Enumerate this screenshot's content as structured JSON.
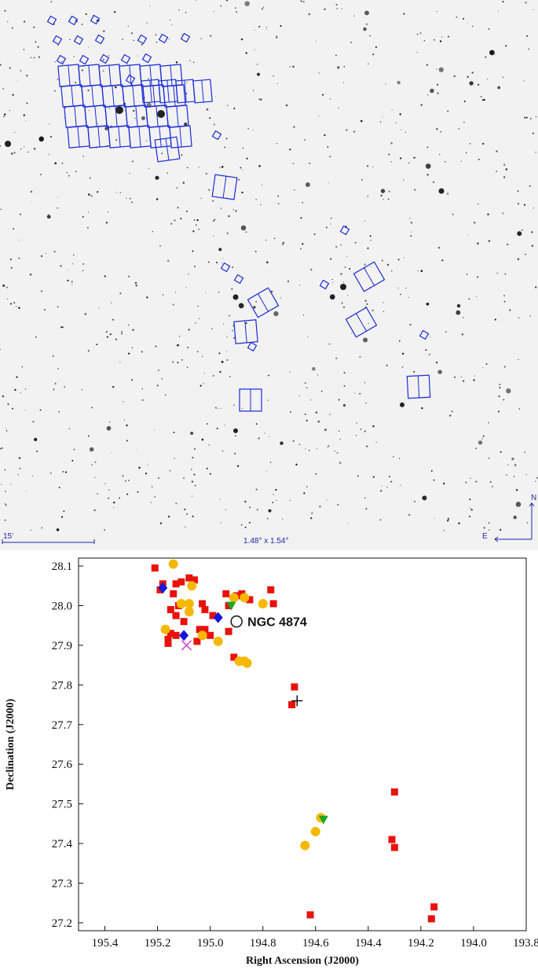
{
  "sky_image": {
    "scale_bar_label": "15'",
    "fov_label": "1.48° x 1.54°",
    "north_label": "N",
    "east_label": "E",
    "frame_color": "#1a2ad8"
  },
  "chart_data": {
    "type": "scatter",
    "title": "",
    "xlabel": "Right Ascension (J2000)",
    "ylabel": "Declination (J2000)",
    "xlim": [
      195.5,
      193.8
    ],
    "ylim": [
      27.18,
      28.12
    ],
    "x_ticks": [
      "195.4",
      "195.2",
      "195.0",
      "194.8",
      "194.6",
      "194.4",
      "194.2",
      "194.0",
      "193.8"
    ],
    "x_tick_values": [
      195.4,
      195.2,
      195.0,
      194.8,
      194.6,
      194.4,
      194.2,
      194.0,
      193.8
    ],
    "y_ticks": [
      "27.2",
      "27.3",
      "27.4",
      "27.5",
      "27.6",
      "27.7",
      "27.8",
      "27.9",
      "28.0",
      "28.1"
    ],
    "y_tick_values": [
      27.2,
      27.3,
      27.4,
      27.5,
      27.6,
      27.7,
      27.8,
      27.9,
      28.0,
      28.1
    ],
    "annotation": {
      "text": "NGC 4874",
      "x": 194.9,
      "y": 27.96
    },
    "series": [
      {
        "marker": "square",
        "color": "#e8120c",
        "points": [
          [
            195.21,
            28.095
          ],
          [
            195.18,
            28.055
          ],
          [
            195.19,
            28.04
          ],
          [
            195.13,
            28.055
          ],
          [
            195.11,
            28.06
          ],
          [
            195.08,
            28.07
          ],
          [
            195.06,
            28.065
          ],
          [
            195.14,
            28.03
          ],
          [
            195.12,
            28.0
          ],
          [
            195.15,
            27.99
          ],
          [
            195.13,
            27.975
          ],
          [
            195.1,
            27.96
          ],
          [
            195.08,
            27.985
          ],
          [
            195.03,
            28.005
          ],
          [
            195.02,
            27.99
          ],
          [
            194.99,
            27.975
          ],
          [
            195.04,
            27.94
          ],
          [
            195.02,
            27.94
          ],
          [
            195.0,
            27.925
          ],
          [
            195.05,
            27.91
          ],
          [
            195.16,
            27.915
          ],
          [
            195.16,
            27.905
          ],
          [
            195.13,
            27.925
          ],
          [
            195.15,
            27.93
          ],
          [
            194.94,
            28.03
          ],
          [
            194.9,
            28.025
          ],
          [
            194.88,
            28.03
          ],
          [
            194.93,
            28.0
          ],
          [
            194.85,
            28.015
          ],
          [
            194.77,
            28.04
          ],
          [
            194.76,
            28.005
          ],
          [
            194.93,
            27.935
          ],
          [
            194.91,
            27.87
          ],
          [
            194.68,
            27.795
          ],
          [
            194.69,
            27.75
          ],
          [
            194.62,
            27.22
          ],
          [
            194.3,
            27.53
          ],
          [
            194.31,
            27.41
          ],
          [
            194.3,
            27.39
          ],
          [
            194.15,
            27.24
          ],
          [
            194.16,
            27.21
          ]
        ]
      },
      {
        "marker": "circle",
        "color": "#f5b800",
        "points": [
          [
            195.14,
            28.105
          ],
          [
            195.07,
            28.05
          ],
          [
            195.11,
            28.005
          ],
          [
            195.08,
            28.005
          ],
          [
            195.08,
            27.985
          ],
          [
            195.17,
            27.94
          ],
          [
            195.03,
            27.925
          ],
          [
            194.97,
            27.91
          ],
          [
            194.91,
            28.02
          ],
          [
            194.87,
            28.02
          ],
          [
            194.8,
            28.005
          ],
          [
            194.89,
            27.86
          ],
          [
            194.87,
            27.86
          ],
          [
            194.86,
            27.855
          ],
          [
            194.58,
            27.465
          ],
          [
            194.6,
            27.43
          ],
          [
            194.64,
            27.395
          ]
        ]
      },
      {
        "marker": "diamond",
        "color": "#1418d8",
        "points": [
          [
            195.18,
            28.045
          ],
          [
            195.1,
            27.925
          ],
          [
            194.97,
            27.97
          ]
        ]
      },
      {
        "marker": "triangle-down",
        "color": "#1ea81e",
        "points": [
          [
            194.92,
            28.0
          ],
          [
            194.57,
            27.46
          ]
        ]
      },
      {
        "marker": "x",
        "color": "#e040d0",
        "points": [
          [
            195.09,
            27.9
          ]
        ]
      },
      {
        "marker": "plus",
        "color": "#111111",
        "points": [
          [
            194.67,
            27.76
          ]
        ]
      },
      {
        "marker": "open-circle",
        "color": "#111111",
        "points": [
          [
            194.9,
            27.96
          ]
        ]
      }
    ]
  }
}
